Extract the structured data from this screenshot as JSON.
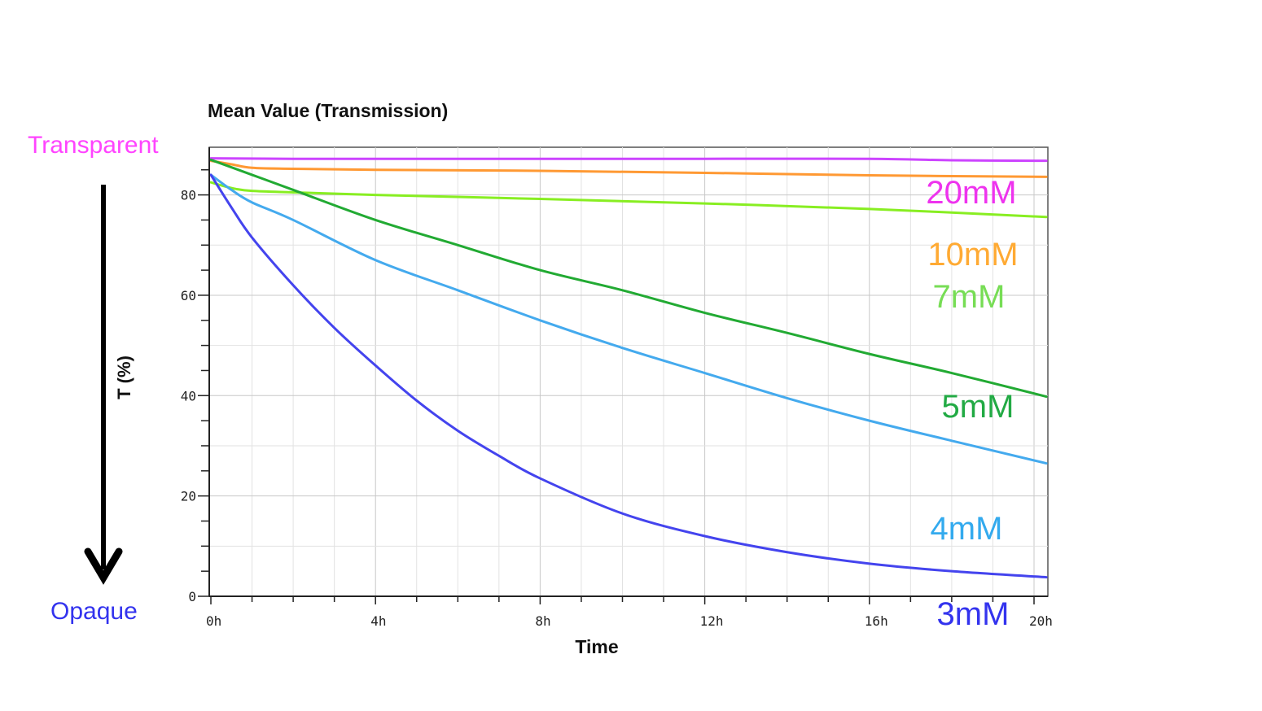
{
  "chart_data": {
    "type": "line",
    "title": "Mean Value (Transmission)",
    "xlabel": "Time",
    "ylabel": "T (%)",
    "xlim": [
      0,
      20.3
    ],
    "ylim": [
      0,
      89
    ],
    "x_ticks": [
      {
        "value": 0,
        "label": "0h"
      },
      {
        "value": 4,
        "label": "4h"
      },
      {
        "value": 8,
        "label": "8h"
      },
      {
        "value": 12,
        "label": "12h"
      },
      {
        "value": 16,
        "label": "16h"
      },
      {
        "value": 20,
        "label": "20h"
      }
    ],
    "y_ticks": [
      {
        "value": 0,
        "label": "0"
      },
      {
        "value": 20,
        "label": "20"
      },
      {
        "value": 40,
        "label": "40"
      },
      {
        "value": 60,
        "label": "60"
      },
      {
        "value": 80,
        "label": "80"
      }
    ],
    "grid": true,
    "series": [
      {
        "name": "20mM",
        "color": "#cc44ff",
        "label_color": "#ee33ee",
        "x": [
          0,
          2,
          4,
          8,
          12,
          16,
          18,
          20.3
        ],
        "y": [
          87.3,
          87.2,
          87.2,
          87.2,
          87.2,
          87.2,
          86.9,
          86.8
        ]
      },
      {
        "name": "10mM",
        "color": "#ff9933",
        "label_color": "#ffaa33",
        "x": [
          0,
          0.5,
          1,
          2,
          4,
          8,
          12,
          16,
          20.3
        ],
        "y": [
          86.8,
          86.1,
          85.4,
          85.2,
          85.0,
          84.8,
          84.4,
          83.9,
          83.6
        ]
      },
      {
        "name": "7mM",
        "color": "#88ee22",
        "label_color": "#77dd55",
        "x": [
          0,
          0.3,
          0.6,
          1,
          2,
          4,
          8,
          12,
          16,
          20.3
        ],
        "y": [
          82.5,
          81.8,
          81.2,
          80.8,
          80.5,
          80.0,
          79.2,
          78.3,
          77.2,
          75.6
        ]
      },
      {
        "name": "5mM",
        "color": "#22aa33",
        "label_color": "#22aa44",
        "x": [
          0,
          1,
          2,
          4,
          6,
          8,
          10,
          12,
          14,
          16,
          18,
          20.3
        ],
        "y": [
          87.0,
          84.0,
          81.0,
          75.0,
          70.0,
          65.0,
          61.0,
          56.5,
          52.5,
          48.3,
          44.5,
          39.8
        ]
      },
      {
        "name": "4mM",
        "color": "#44aaee",
        "label_color": "#33aaee",
        "x": [
          0,
          0.5,
          1,
          2,
          4,
          6,
          8,
          10,
          12,
          14,
          16,
          18,
          20.3
        ],
        "y": [
          84.0,
          81.0,
          78.5,
          75.0,
          67.0,
          61.0,
          55.0,
          49.5,
          44.5,
          39.5,
          35.0,
          31.0,
          26.5
        ]
      },
      {
        "name": "3mM",
        "color": "#4444ee",
        "label_color": "#3333ee",
        "x": [
          0,
          0.5,
          1,
          2,
          3,
          4,
          5,
          6,
          7,
          8,
          10,
          12,
          14,
          16,
          18,
          20.3
        ],
        "y": [
          84.0,
          77.5,
          71.5,
          62.0,
          53.5,
          46.0,
          39.0,
          33.0,
          28.0,
          23.5,
          16.5,
          12.0,
          8.8,
          6.5,
          5.0,
          3.8
        ]
      }
    ]
  },
  "side_labels": {
    "top": "Transparent",
    "top_color": "#ff44ff",
    "bottom": "Opaque",
    "bottom_color": "#3333ee"
  }
}
